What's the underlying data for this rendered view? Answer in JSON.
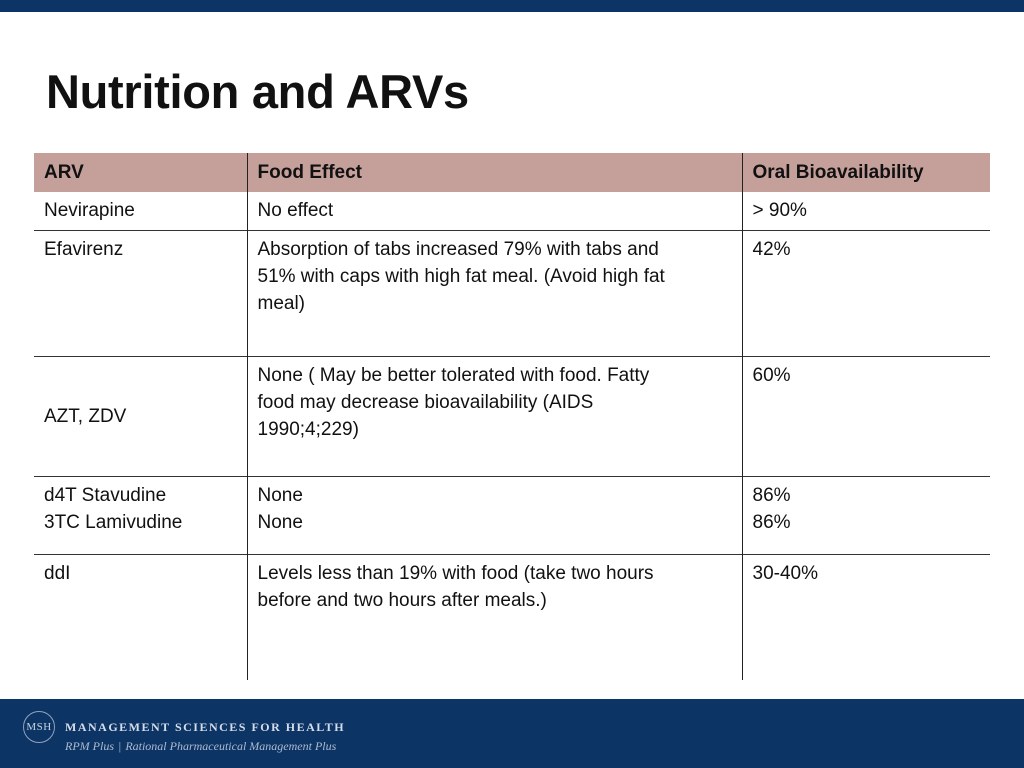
{
  "slide": {
    "title": "Nutrition and ARVs"
  },
  "table": {
    "headers": [
      "ARV",
      "Food Effect",
      "Oral Bioavailability"
    ],
    "rows": [
      {
        "arv": [
          "Nevirapine"
        ],
        "food_effect": [
          "No effect"
        ],
        "bioavailability": [
          "> 90%"
        ]
      },
      {
        "arv": [
          "Efavirenz"
        ],
        "food_effect": [
          "Absorption of tabs increased 79% with  tabs and",
          "51% with caps with high fat meal. (Avoid high fat",
          "meal)"
        ],
        "bioavailability": [
          "42%"
        ]
      },
      {
        "arv": [
          "AZT, ZDV"
        ],
        "food_effect": [
          "None ( May be better tolerated with food. Fatty",
          "food may decrease bioavailability (AIDS",
          "1990;4;229)"
        ],
        "bioavailability": [
          "60%"
        ]
      },
      {
        "arv": [
          "d4T Stavudine",
          "3TC Lamivudine"
        ],
        "food_effect": [
          "None",
          "None"
        ],
        "bioavailability": [
          "86%",
          "86%"
        ]
      },
      {
        "arv": [
          "ddI"
        ],
        "food_effect": [
          "Levels less than 19% with food (take two hours",
          "before and two hours after meals.)"
        ],
        "bioavailability": [
          "30-40%"
        ]
      }
    ]
  },
  "footer": {
    "logo_text": "MSH",
    "org_name": "Management Sciences for Health",
    "program_name": "RPM Plus",
    "program_separator": "|",
    "program_full": "Rational Pharmaceutical Management Plus"
  },
  "colors": {
    "header_bar": "#0c3566",
    "table_header": "#c5a09b"
  }
}
